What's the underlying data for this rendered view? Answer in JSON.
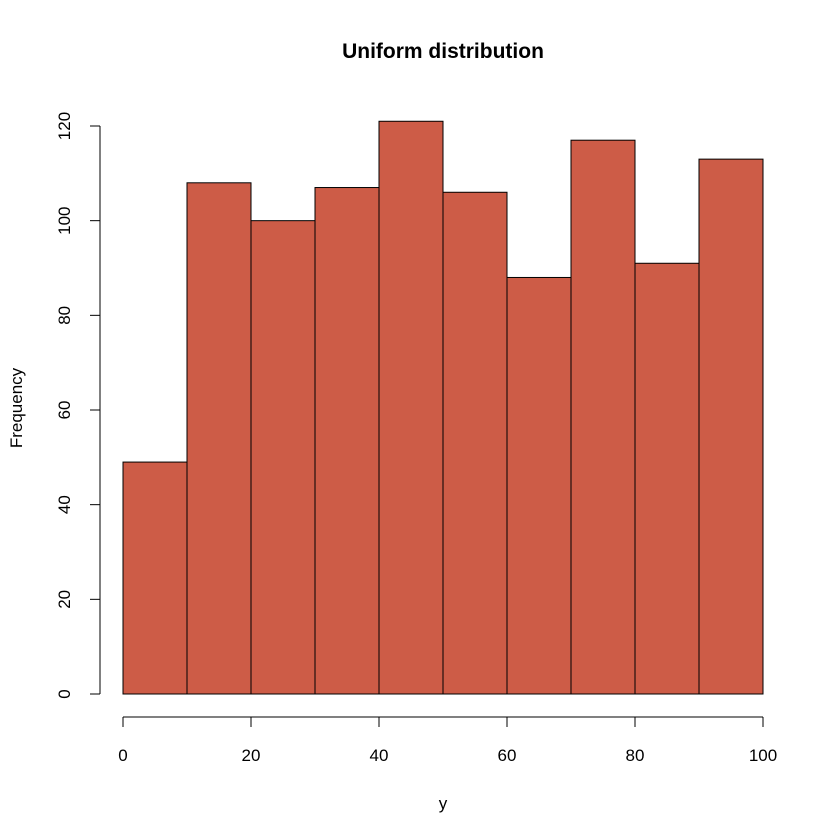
{
  "chart_data": {
    "type": "bar",
    "title": "Uniform distribution",
    "xlabel": "y",
    "ylabel": "Frequency",
    "bins": [
      {
        "start": 0,
        "end": 10,
        "value": 49
      },
      {
        "start": 10,
        "end": 20,
        "value": 108
      },
      {
        "start": 20,
        "end": 30,
        "value": 100
      },
      {
        "start": 30,
        "end": 40,
        "value": 107
      },
      {
        "start": 40,
        "end": 50,
        "value": 121
      },
      {
        "start": 50,
        "end": 60,
        "value": 106
      },
      {
        "start": 60,
        "end": 70,
        "value": 88
      },
      {
        "start": 70,
        "end": 80,
        "value": 117
      },
      {
        "start": 80,
        "end": 90,
        "value": 91
      },
      {
        "start": 90,
        "end": 100,
        "value": 113
      }
    ],
    "xlim": [
      0,
      100
    ],
    "ylim": [
      0,
      120
    ],
    "x_ticks": [
      "0",
      "20",
      "40",
      "60",
      "80",
      "100"
    ],
    "y_ticks": [
      "0",
      "20",
      "40",
      "60",
      "80",
      "100",
      "120"
    ],
    "bar_color": "#CD5C47",
    "grid": false,
    "legend": "none"
  }
}
